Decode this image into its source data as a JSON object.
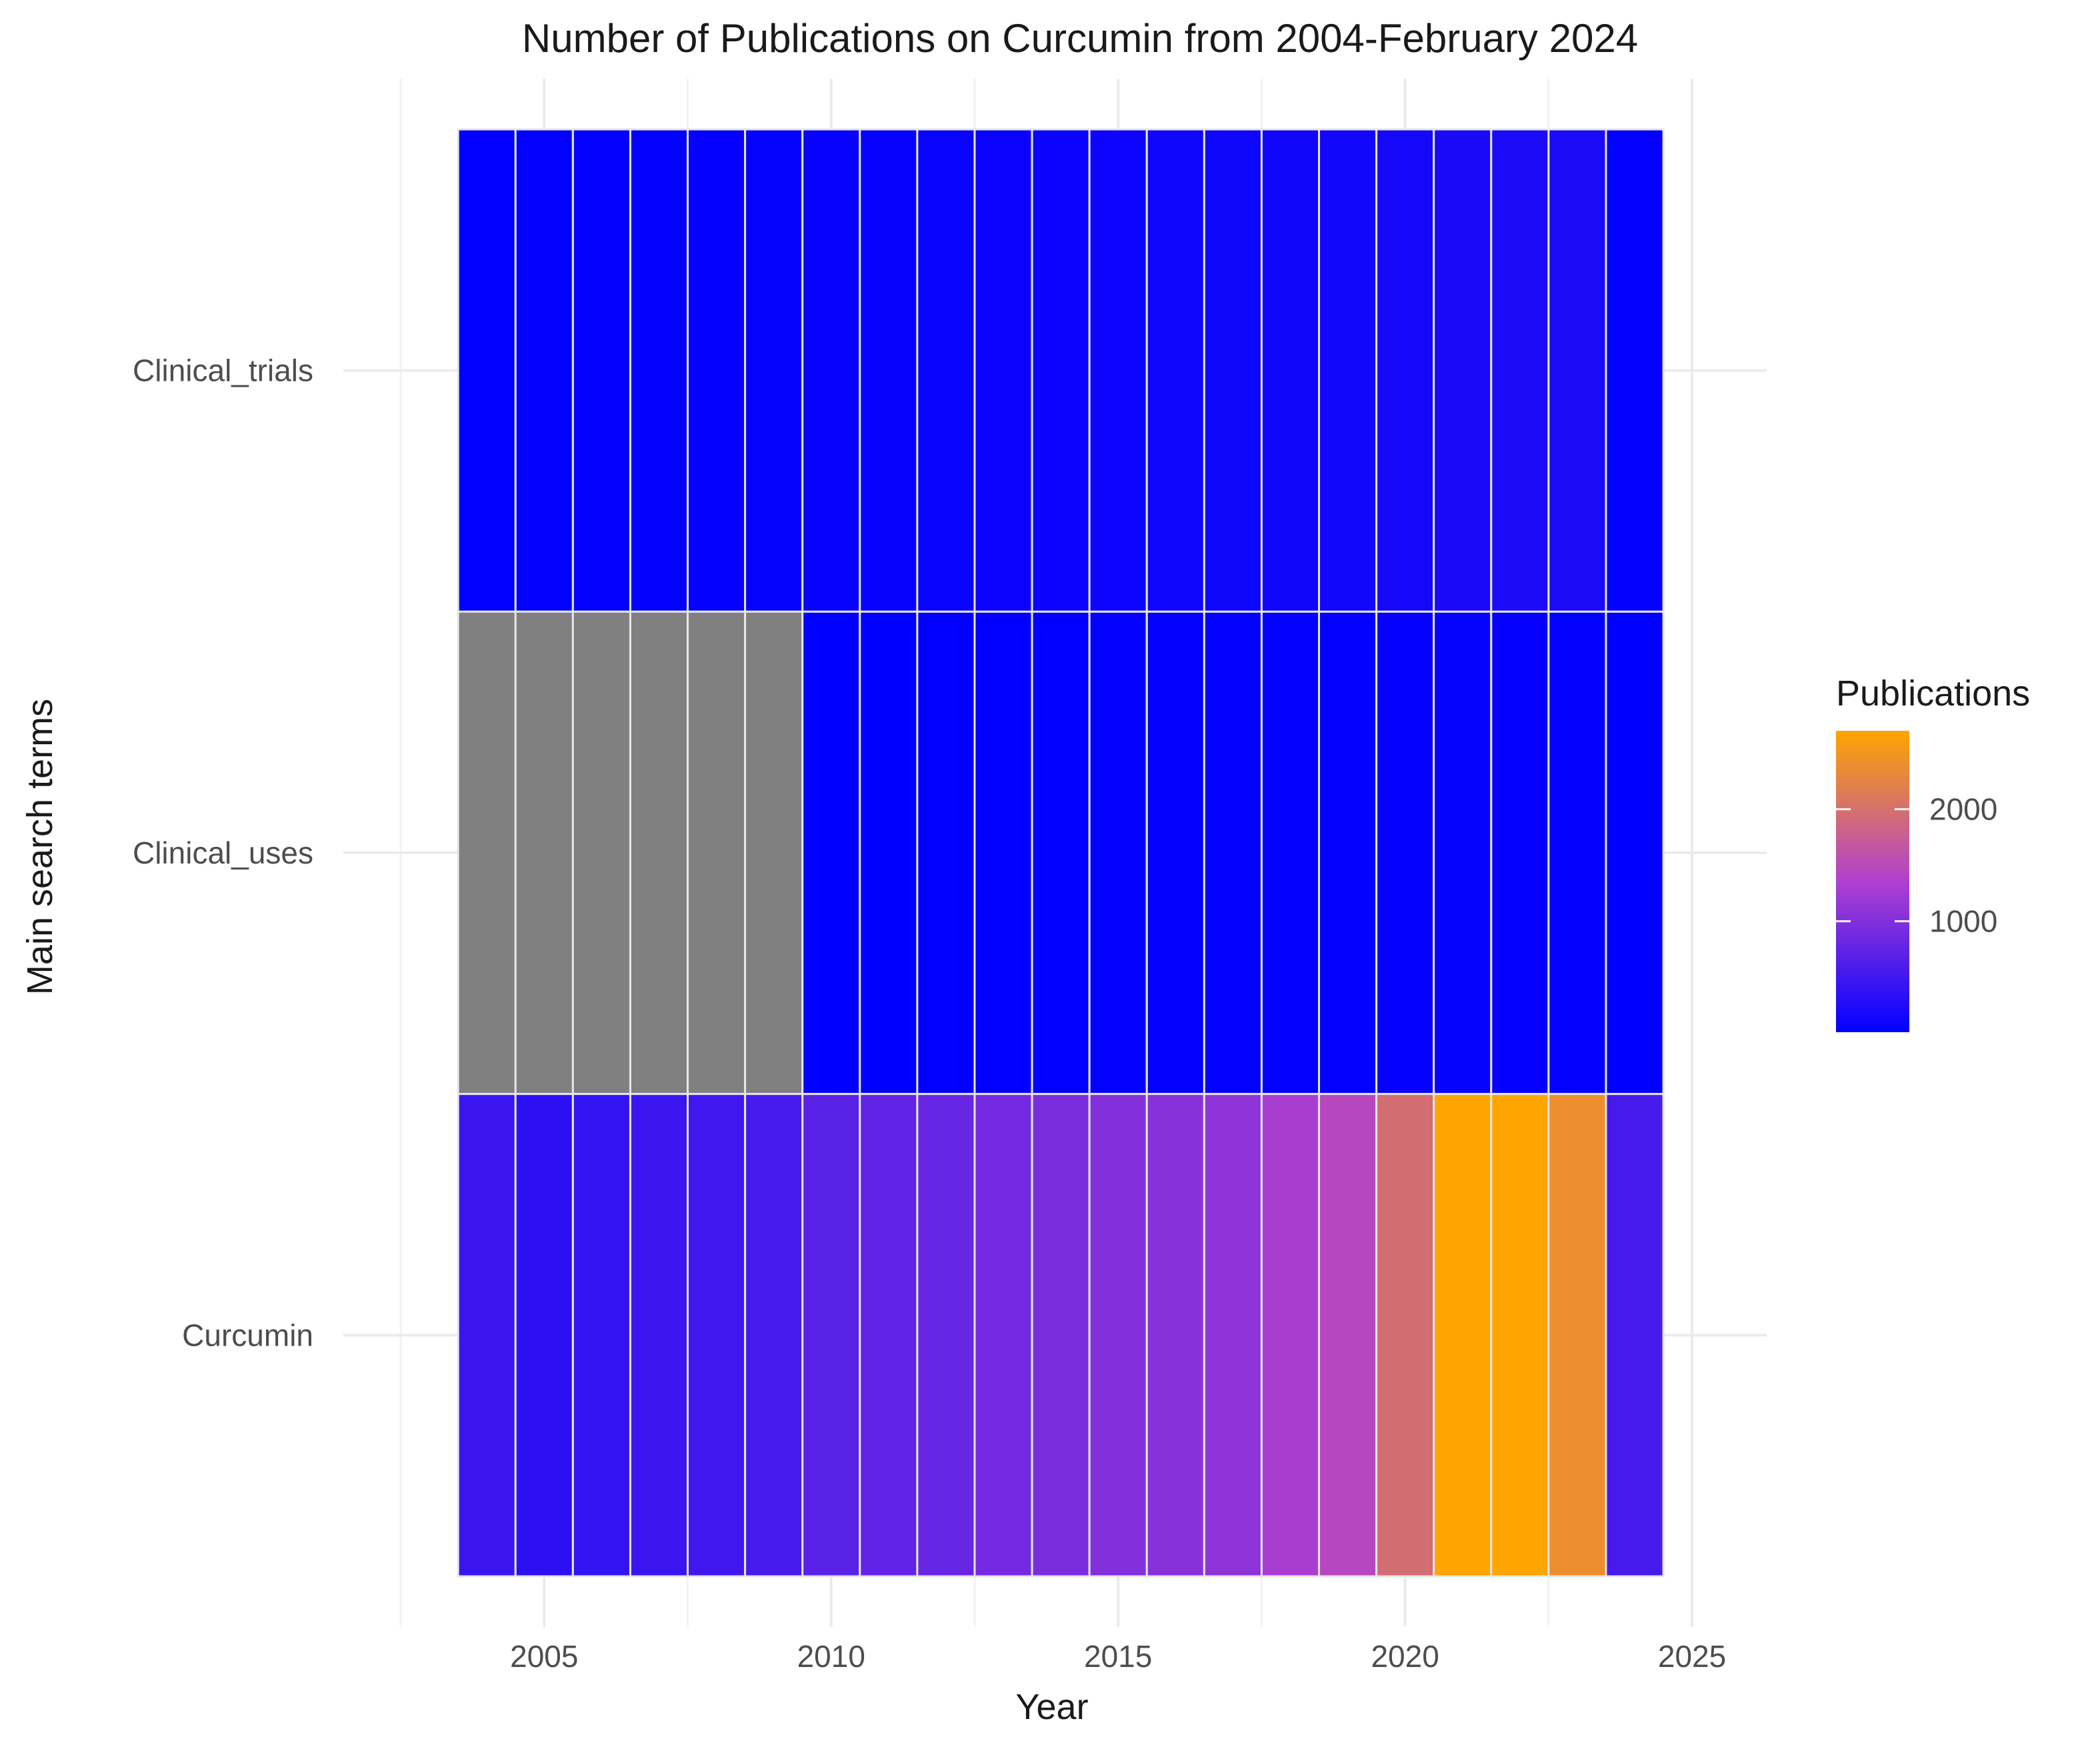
{
  "chart_data": {
    "type": "heatmap",
    "title": "Number of Publications on Curcumin from 2004-February 2024",
    "xlabel": "Year",
    "ylabel": "Main search terms",
    "x": [
      2004,
      2005,
      2006,
      2007,
      2008,
      2009,
      2010,
      2011,
      2012,
      2013,
      2014,
      2015,
      2016,
      2017,
      2018,
      2019,
      2020,
      2021,
      2022,
      2023,
      2024
    ],
    "x_ticks": [
      2005,
      2010,
      2015,
      2020,
      2025
    ],
    "xlim": [
      2001.5,
      2026.3
    ],
    "categories": [
      "Clinical_trials",
      "Clinical_uses",
      "Curcumin"
    ],
    "series": [
      {
        "name": "Clinical_trials",
        "values": [
          20,
          25,
          30,
          35,
          40,
          45,
          55,
          60,
          70,
          80,
          90,
          100,
          110,
          120,
          140,
          150,
          170,
          200,
          220,
          210,
          30
        ]
      },
      {
        "name": "Clinical_uses",
        "values": [
          null,
          null,
          null,
          null,
          null,
          null,
          10,
          12,
          15,
          18,
          20,
          22,
          25,
          28,
          30,
          35,
          40,
          45,
          40,
          35,
          10
        ]
      },
      {
        "name": "Curcumin",
        "values": [
          450,
          350,
          400,
          450,
          500,
          550,
          700,
          750,
          800,
          900,
          950,
          1000,
          1050,
          1100,
          1300,
          1450,
          1950,
          2700,
          2700,
          2400,
          550
        ]
      }
    ],
    "legend": {
      "title": "Publications",
      "ticks": [
        1000,
        2000
      ],
      "range": [
        10,
        2700
      ],
      "position": "right",
      "low_color": "#0000FF",
      "mid_color": "#B040D0",
      "high_color": "#FFA500"
    },
    "na_color": "#808080",
    "grid": true
  }
}
